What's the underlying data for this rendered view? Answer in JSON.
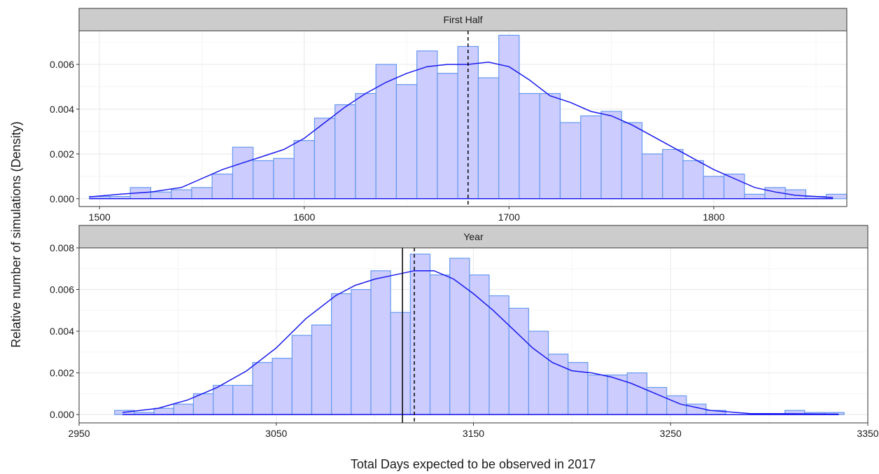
{
  "chart_data": {
    "type": "histogram",
    "ylabel": "Relative number of simulations (Density)",
    "xlabel": "Total Days expected to be observed in 2017",
    "grid": true,
    "colors": {
      "bar_fill": "#ccccff",
      "bar_stroke": "#6699ee",
      "density_line": "#1a1aee",
      "vline": "#000000",
      "strip_fill": "#cccccc",
      "panel_border": "#333333",
      "grid_major": "#ebebeb",
      "grid_minor": "#f5f5f5"
    },
    "panels": [
      {
        "title": "First Half",
        "xlim": [
          1490,
          1865
        ],
        "ylim": [
          -0.00035,
          0.0075
        ],
        "x_ticks": [
          1500,
          1600,
          1700,
          1800
        ],
        "x_tick_labels": [
          "1500",
          "1600",
          "1700",
          "1800"
        ],
        "y_ticks": [
          0,
          0.002,
          0.004,
          0.006
        ],
        "y_tick_labels": [
          "0.000",
          "0.002",
          "0.004",
          "0.006"
        ],
        "bins": {
          "start": 1495,
          "width": 10,
          "values": [
            0.0001,
            0.0001,
            0.0005,
            0.0003,
            0.0004,
            0.0005,
            0.0011,
            0.0023,
            0.0017,
            0.0018,
            0.0026,
            0.0036,
            0.0042,
            0.0047,
            0.006,
            0.0051,
            0.0066,
            0.0056,
            0.0068,
            0.0054,
            0.0073,
            0.0047,
            0.0047,
            0.0034,
            0.0037,
            0.0039,
            0.0034,
            0.002,
            0.0022,
            0.0017,
            0.001,
            0.0011,
            0.0002,
            0.0005,
            0.0004,
            0.0001,
            0.0002
          ]
        },
        "density_curve": {
          "x": [
            1495,
            1510,
            1525,
            1540,
            1550,
            1560,
            1570,
            1580,
            1590,
            1600,
            1610,
            1620,
            1630,
            1640,
            1650,
            1660,
            1670,
            1680,
            1690,
            1700,
            1710,
            1720,
            1730,
            1740,
            1750,
            1760,
            1770,
            1780,
            1790,
            1800,
            1810,
            1820,
            1830,
            1840,
            1850,
            1858
          ],
          "y": [
            8e-05,
            0.0002,
            0.0003,
            0.0005,
            0.0009,
            0.0013,
            0.0016,
            0.0019,
            0.0022,
            0.0027,
            0.0034,
            0.0041,
            0.0047,
            0.0052,
            0.0056,
            0.0059,
            0.006,
            0.006,
            0.0061,
            0.0059,
            0.0053,
            0.0046,
            0.0043,
            0.0039,
            0.0037,
            0.0033,
            0.0028,
            0.0023,
            0.0018,
            0.0013,
            0.0009,
            0.0005,
            0.0003,
            0.00015,
            0.0001,
            5e-05
          ]
        },
        "vlines": [
          {
            "x": 1680,
            "style": "dashed"
          }
        ]
      },
      {
        "title": "Year",
        "xlim": [
          2950,
          3350
        ],
        "ylim": [
          -0.0004,
          0.008
        ],
        "x_ticks": [
          2950,
          3050,
          3150,
          3250,
          3350
        ],
        "x_tick_labels": [
          "2950",
          "3050",
          "3150",
          "3250",
          "3350"
        ],
        "y_ticks": [
          0,
          0.002,
          0.004,
          0.006,
          0.008
        ],
        "y_tick_labels": [
          "0.000",
          "0.002",
          "0.004",
          "0.006",
          "0.008"
        ],
        "bins": {
          "start": 2968,
          "width": 10,
          "values": [
            0.0002,
            0.0001,
            0.0003,
            0.0005,
            0.001,
            0.0014,
            0.0014,
            0.0025,
            0.0027,
            0.0038,
            0.0043,
            0.0058,
            0.006,
            0.0069,
            0.0049,
            0.0077,
            0.0067,
            0.0075,
            0.0067,
            0.0057,
            0.0051,
            0.004,
            0.0029,
            0.0025,
            0.0019,
            0.0019,
            0.002,
            0.0013,
            0.0009,
            0.0005,
            0.0002,
            0.0,
            0.0,
            0.0,
            0.0002,
            0.0001,
            0.0001
          ]
        },
        "density_curve": {
          "x": [
            2972,
            2990,
            3005,
            3020,
            3035,
            3050,
            3065,
            3080,
            3090,
            3100,
            3110,
            3120,
            3130,
            3140,
            3150,
            3160,
            3170,
            3180,
            3190,
            3200,
            3210,
            3220,
            3230,
            3240,
            3255,
            3270,
            3290,
            3310,
            3335
          ],
          "y": [
            0.0001,
            0.0003,
            0.0007,
            0.0013,
            0.0021,
            0.0032,
            0.0046,
            0.0057,
            0.0062,
            0.0065,
            0.0067,
            0.0069,
            0.0069,
            0.0065,
            0.0058,
            0.005,
            0.0041,
            0.0032,
            0.0025,
            0.0021,
            0.002,
            0.0018,
            0.0015,
            0.0011,
            0.0005,
            0.0002,
            5e-05,
            4e-05,
            2e-05
          ]
        },
        "vlines": [
          {
            "x": 3114,
            "style": "solid"
          },
          {
            "x": 3120,
            "style": "dashed"
          }
        ]
      }
    ]
  }
}
